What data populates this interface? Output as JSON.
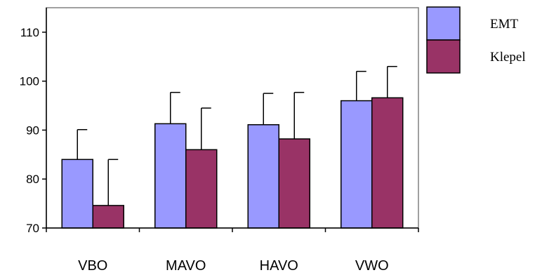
{
  "chart_data": {
    "type": "bar",
    "categories": [
      "VBO",
      "MAVO",
      "HAVO",
      "VWO"
    ],
    "series": [
      {
        "name": "EMT",
        "color": "#9999ff",
        "values": [
          84.0,
          91.3,
          91.1,
          96.0
        ],
        "error": [
          6.1,
          6.4,
          6.4,
          6.0
        ]
      },
      {
        "name": "Klepel",
        "color": "#993366",
        "values": [
          74.6,
          86.0,
          88.2,
          96.6
        ],
        "error": [
          9.4,
          8.5,
          9.5,
          6.4
        ]
      }
    ],
    "ylim": [
      70,
      115
    ],
    "yticks": [
      70,
      80,
      90,
      100,
      110
    ],
    "grid": false,
    "legend_position": "top-right"
  }
}
